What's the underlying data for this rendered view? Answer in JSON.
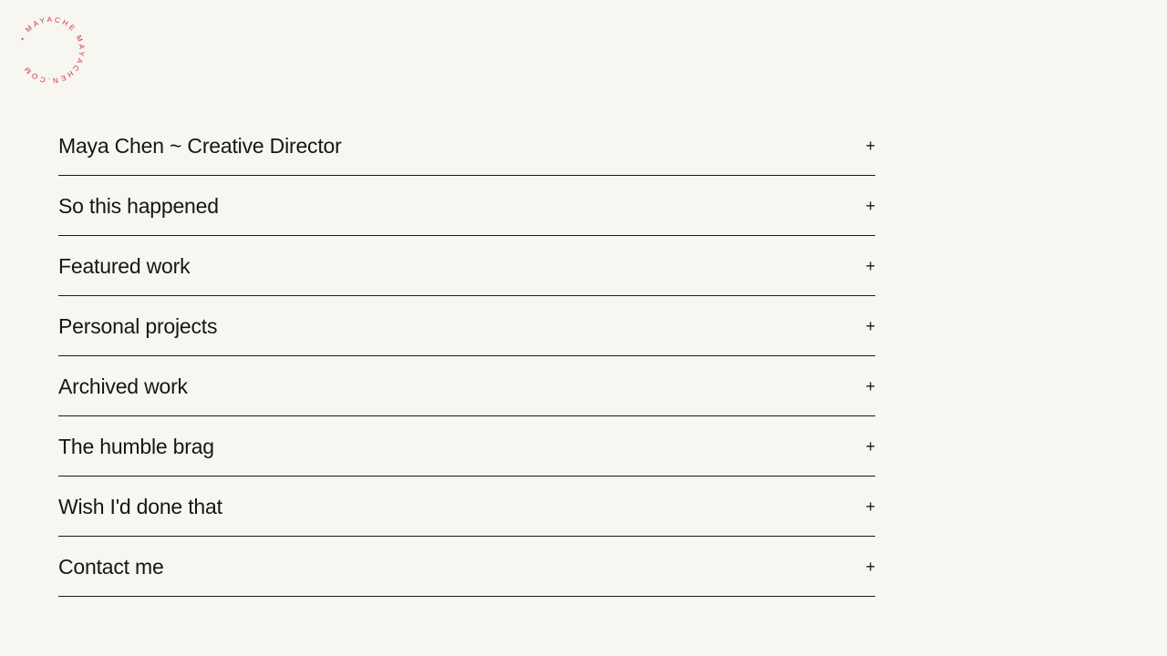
{
  "logo": {
    "text": "• MAYACHE MAYACHEN.COM ",
    "color": "#d6303a"
  },
  "accordion": {
    "items": [
      {
        "label": "Maya Chen ~ Creative Director",
        "icon": "+"
      },
      {
        "label": "So this happened",
        "icon": "+"
      },
      {
        "label": "Featured work",
        "icon": "+"
      },
      {
        "label": "Personal projects",
        "icon": "+"
      },
      {
        "label": "Archived work",
        "icon": "+"
      },
      {
        "label": "The humble brag",
        "icon": "+"
      },
      {
        "label": "Wish I'd done that",
        "icon": "+"
      },
      {
        "label": "Contact me",
        "icon": "+"
      }
    ]
  }
}
